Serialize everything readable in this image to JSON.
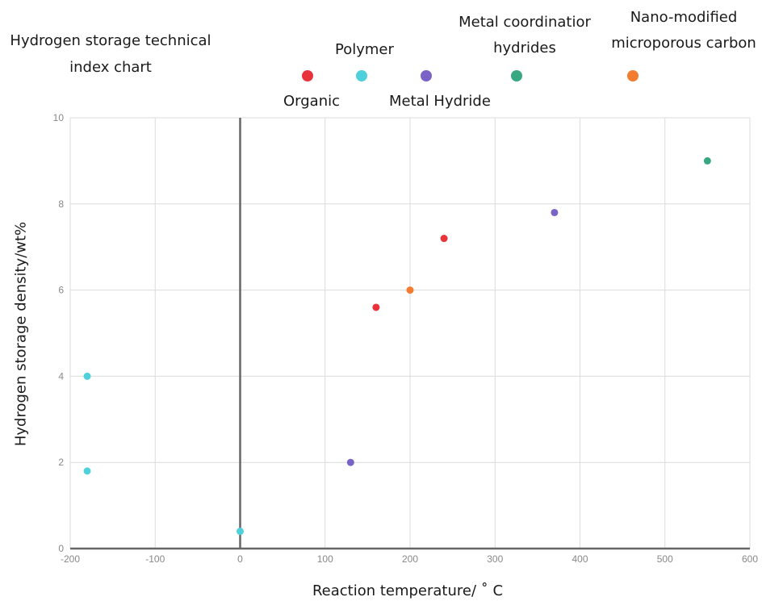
{
  "chart_data": {
    "type": "scatter",
    "title": "Hydrogen storage technical index chart",
    "xlabel": "Reaction temperature/ ˚ C",
    "ylabel": "Hydrogen storage density/wt%",
    "xlim": [
      -200,
      600
    ],
    "ylim": [
      0,
      10
    ],
    "xticks": [
      "-200",
      "-100",
      "0",
      "100",
      "200",
      "300",
      "400",
      "500",
      "600"
    ],
    "yticks": [
      "0",
      "2",
      "4",
      "6",
      "8",
      "10"
    ],
    "grid": true,
    "legend_position": "top",
    "series": [
      {
        "name": "Organic",
        "color": "#e8333a",
        "points": [
          [
            160,
            5.6
          ],
          [
            240,
            7.2
          ]
        ]
      },
      {
        "name": "Polymer",
        "color": "#4fd1dc",
        "points": [
          [
            -180,
            4.0
          ],
          [
            -180,
            1.8
          ],
          [
            0,
            0.4
          ]
        ]
      },
      {
        "name": "Metal Hydride",
        "color": "#7a63c6",
        "points": [
          [
            130,
            2.0
          ],
          [
            370,
            7.8
          ]
        ]
      },
      {
        "name": "Metal coordinatior hydrides",
        "color": "#38a882",
        "points": [
          [
            550,
            9.0
          ]
        ]
      },
      {
        "name": "Nano-modified microporous carbon",
        "color": "#f47c30",
        "points": [
          [
            200,
            6.0
          ]
        ]
      }
    ]
  }
}
